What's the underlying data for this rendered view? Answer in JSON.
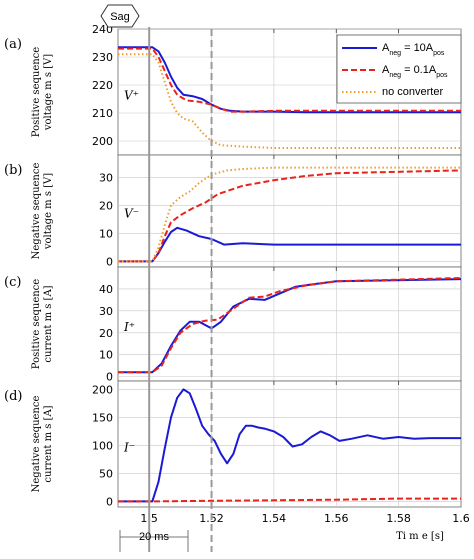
{
  "figure": {
    "sag_label": "Sag",
    "duration_label": "20 ms",
    "x_axis_label": "Ti m e [s]"
  },
  "legend": [
    {
      "prefix": "A",
      "sub1": "neg",
      "mid": " = 10A",
      "sub2": "pos",
      "color": "#1a1ad6",
      "dash": "solid"
    },
    {
      "prefix": "A",
      "sub1": "neg",
      "mid": " = 0.1A",
      "sub2": "pos",
      "color": "#e8231c",
      "dash": "dashed"
    },
    {
      "prefix": "no converter",
      "sub1": "",
      "mid": "",
      "sub2": "",
      "color": "#f39c2a",
      "dash": "dotted"
    }
  ],
  "colors": {
    "blue": "#1a1ad6",
    "red": "#e8231c",
    "orange": "#f39c2a",
    "grid": "#c8c8c8",
    "marker": "#9a9a9a"
  },
  "chart_data": [
    {
      "type": "line",
      "panel": "(a)",
      "var_label": "V⁺",
      "ylabel": [
        "Positive sequence",
        "voltage m s [V]"
      ],
      "xlim": [
        1.49,
        1.6
      ],
      "ylim": [
        195,
        240
      ],
      "yticks": [
        200,
        210,
        220,
        230,
        240
      ],
      "xticks": [],
      "series": [
        {
          "name": "Aneg = 10Apos",
          "color": "#1a1ad6",
          "dash": "solid",
          "x": [
            1.49,
            1.501,
            1.503,
            1.505,
            1.507,
            1.509,
            1.511,
            1.514,
            1.517,
            1.52,
            1.523,
            1.526,
            1.53,
            1.54,
            1.55,
            1.6
          ],
          "y": [
            233.5,
            233.5,
            232,
            228,
            223,
            219,
            216.5,
            216,
            215,
            213,
            211.5,
            210.8,
            210.5,
            210.5,
            210.3,
            210.3
          ]
        },
        {
          "name": "Aneg = 0.1Apos",
          "color": "#e8231c",
          "dash": "dashed",
          "x": [
            1.49,
            1.501,
            1.503,
            1.505,
            1.507,
            1.509,
            1.512,
            1.516,
            1.52,
            1.523,
            1.526,
            1.53,
            1.54,
            1.55,
            1.6
          ],
          "y": [
            233,
            233,
            230,
            225,
            220,
            216.5,
            214.5,
            214,
            213,
            211.5,
            210.5,
            210.5,
            210.8,
            210.8,
            210.8
          ]
        },
        {
          "name": "no converter",
          "color": "#f39c2a",
          "dash": "dotted",
          "x": [
            1.49,
            1.501,
            1.503,
            1.505,
            1.507,
            1.509,
            1.511,
            1.514,
            1.517,
            1.52,
            1.523,
            1.53,
            1.54,
            1.6
          ],
          "y": [
            231,
            231,
            228,
            221,
            214,
            210,
            208,
            207,
            203,
            200,
            198.5,
            198,
            197.5,
            197.5
          ]
        }
      ]
    },
    {
      "type": "line",
      "panel": "(b)",
      "var_label": "V⁻",
      "ylabel": [
        "Negative sequence",
        "voltage m s [V]"
      ],
      "xlim": [
        1.49,
        1.6
      ],
      "ylim": [
        -2,
        38
      ],
      "yticks": [
        0,
        10,
        20,
        30
      ],
      "xticks": [],
      "series": [
        {
          "name": "Aneg = 10Apos",
          "color": "#1a1ad6",
          "dash": "solid",
          "x": [
            1.49,
            1.501,
            1.503,
            1.505,
            1.507,
            1.509,
            1.512,
            1.516,
            1.52,
            1.524,
            1.53,
            1.54,
            1.55,
            1.6
          ],
          "y": [
            0,
            0,
            3,
            7,
            10.5,
            12,
            11,
            9,
            8,
            6,
            6.5,
            6,
            6,
            6
          ]
        },
        {
          "name": "Aneg = 0.1Apos",
          "color": "#e8231c",
          "dash": "dashed",
          "x": [
            1.49,
            1.501,
            1.503,
            1.505,
            1.507,
            1.51,
            1.514,
            1.518,
            1.522,
            1.53,
            1.54,
            1.55,
            1.56,
            1.6
          ],
          "y": [
            0,
            0,
            3,
            9,
            14,
            16.5,
            19,
            21,
            24,
            27,
            29,
            30.5,
            31.5,
            32.5
          ]
        },
        {
          "name": "no converter",
          "color": "#f39c2a",
          "dash": "dotted",
          "x": [
            1.49,
            1.501,
            1.503,
            1.505,
            1.507,
            1.51,
            1.513,
            1.516,
            1.52,
            1.525,
            1.53,
            1.54,
            1.55,
            1.6
          ],
          "y": [
            0,
            0,
            5,
            13,
            20,
            23,
            25,
            28,
            31,
            32.5,
            33,
            33.5,
            33.5,
            33.5
          ]
        }
      ]
    },
    {
      "type": "line",
      "panel": "(c)",
      "var_label": "I⁺",
      "ylabel": [
        "Positive sequence",
        "current m s [A]"
      ],
      "xlim": [
        1.49,
        1.6
      ],
      "ylim": [
        -2,
        50
      ],
      "yticks": [
        0,
        10,
        20,
        30,
        40
      ],
      "xticks": [],
      "series": [
        {
          "name": "Aneg = 10Apos",
          "color": "#1a1ad6",
          "dash": "solid",
          "x": [
            1.49,
            1.501,
            1.504,
            1.507,
            1.51,
            1.513,
            1.516,
            1.52,
            1.523,
            1.527,
            1.532,
            1.537,
            1.542,
            1.547,
            1.552,
            1.56,
            1.6
          ],
          "y": [
            2,
            2,
            6,
            14,
            21,
            25,
            25,
            22,
            25,
            32,
            35.5,
            35,
            38,
            41,
            42,
            43.5,
            44.5
          ]
        },
        {
          "name": "Aneg = 0.1Apos",
          "color": "#e8231c",
          "dash": "dashed",
          "x": [
            1.49,
            1.501,
            1.504,
            1.507,
            1.51,
            1.514,
            1.518,
            1.522,
            1.527,
            1.532,
            1.537,
            1.542,
            1.55,
            1.56,
            1.6
          ],
          "y": [
            2,
            2,
            5,
            13,
            20,
            24,
            25.5,
            26,
            31,
            36,
            36.5,
            39,
            41.5,
            43.5,
            45
          ]
        }
      ]
    },
    {
      "type": "line",
      "panel": "(d)",
      "var_label": "I⁻",
      "ylabel": [
        "Negative sequence",
        "current m s [A]"
      ],
      "xlim": [
        1.49,
        1.6
      ],
      "ylim": [
        -10,
        215
      ],
      "yticks": [
        0,
        50,
        100,
        150,
        200
      ],
      "xticks": [
        1.5,
        1.52,
        1.54,
        1.56,
        1.58,
        1.6
      ],
      "series": [
        {
          "name": "Aneg = 10Apos",
          "color": "#1a1ad6",
          "dash": "solid",
          "x": [
            1.49,
            1.501,
            1.503,
            1.505,
            1.507,
            1.509,
            1.511,
            1.513,
            1.515,
            1.517,
            1.519,
            1.521,
            1.523,
            1.525,
            1.527,
            1.529,
            1.531,
            1.533,
            1.535,
            1.537,
            1.54,
            1.543,
            1.546,
            1.549,
            1.552,
            1.555,
            1.558,
            1.561,
            1.565,
            1.57,
            1.575,
            1.58,
            1.585,
            1.59,
            1.6
          ],
          "y": [
            0,
            0,
            35,
            95,
            150,
            185,
            200,
            193,
            165,
            135,
            120,
            108,
            85,
            68,
            85,
            120,
            135,
            135,
            132,
            130,
            125,
            115,
            98,
            102,
            115,
            125,
            118,
            108,
            112,
            118,
            112,
            115,
            112,
            113,
            113
          ]
        },
        {
          "name": "Aneg = 0.1Apos",
          "color": "#e8231c",
          "dash": "dashed",
          "x": [
            1.49,
            1.501,
            1.52,
            1.54,
            1.56,
            1.58,
            1.6
          ],
          "y": [
            0,
            0,
            1,
            2,
            3,
            5,
            5
          ]
        }
      ]
    }
  ]
}
